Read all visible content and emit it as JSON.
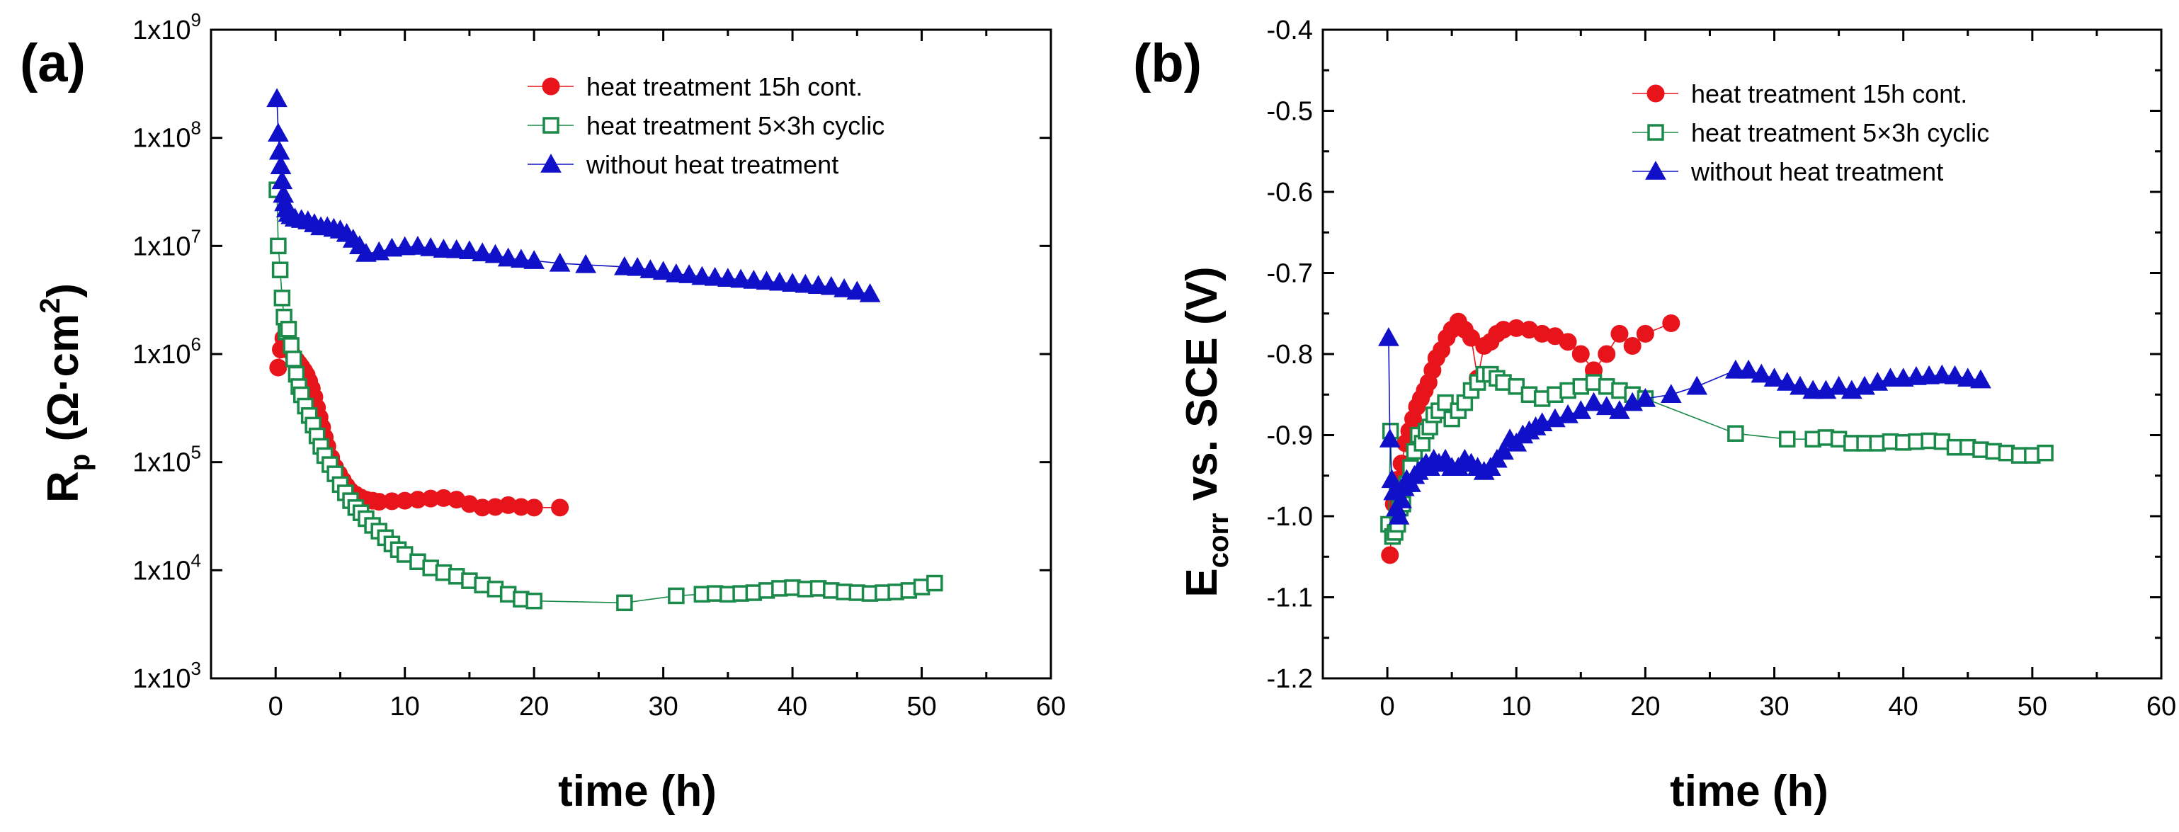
{
  "colors": {
    "red": "#E8141B",
    "green": "#1A8A4A",
    "blue": "#1010C8",
    "axis": "#000000"
  },
  "legend": {
    "red": "heat treatment 15h cont.",
    "green": "heat treatment 5×3h cyclic",
    "blue": "without heat treatment"
  },
  "chart_data": [
    {
      "type": "scatter",
      "panel_label": "(a)",
      "xlabel": "time (h)",
      "ylabel": "Rp (Ω·cm2)",
      "ylabel_parts": {
        "main": "R",
        "sub": "p",
        "unit_open": " (Ω·cm",
        "sup": "2",
        "unit_close": ")"
      },
      "xlim": [
        -5,
        60
      ],
      "ylim": [
        1000,
        1000000000
      ],
      "yscale": "log",
      "x_ticks": [
        0,
        10,
        20,
        30,
        40,
        50,
        60
      ],
      "x_tick_labels": [
        "0",
        "10",
        "20",
        "30",
        "40",
        "50",
        "60"
      ],
      "y_ticks": [
        1000,
        10000,
        100000,
        1000000,
        10000000,
        100000000,
        1000000000
      ],
      "y_tick_labels": [
        {
          "base": "1x10",
          "exp": "3"
        },
        {
          "base": "1x10",
          "exp": "4"
        },
        {
          "base": "1x10",
          "exp": "5"
        },
        {
          "base": "1x10",
          "exp": "6"
        },
        {
          "base": "1x10",
          "exp": "7"
        },
        {
          "base": "1x10",
          "exp": "8"
        },
        {
          "base": "1x10",
          "exp": "9"
        }
      ],
      "legend_position": "top-right",
      "series": [
        {
          "name": "heat treatment 15h cont.",
          "color_key": "red",
          "marker": "circle",
          "filled": true,
          "x": [
            0.2,
            0.4,
            0.6,
            0.8,
            1.0,
            1.2,
            1.4,
            1.6,
            1.8,
            2.0,
            2.2,
            2.4,
            2.6,
            2.8,
            3.0,
            3.2,
            3.4,
            3.6,
            3.8,
            4.0,
            4.3,
            4.6,
            4.9,
            5.2,
            5.5,
            5.8,
            6.2,
            6.6,
            7.0,
            7.5,
            8.0,
            9.0,
            10.0,
            11.0,
            12.0,
            13.0,
            14.0,
            15.0,
            16.0,
            17.0,
            18.0,
            19.0,
            20.0,
            22.0
          ],
          "y": [
            750000,
            1100000,
            1400000,
            1300000,
            1150000,
            1050000,
            950000,
            880000,
            820000,
            760000,
            700000,
            640000,
            560000,
            480000,
            400000,
            320000,
            260000,
            210000,
            170000,
            140000,
            110000,
            90000,
            78000,
            68000,
            60000,
            54000,
            50000,
            47000,
            45000,
            44000,
            43000,
            43500,
            44000,
            45000,
            46000,
            46500,
            45000,
            41000,
            38000,
            38500,
            40000,
            38500,
            38000,
            38000
          ]
        },
        {
          "name": "heat treatment 5×3h cyclic",
          "color_key": "green",
          "marker": "square",
          "filled": false,
          "x": [
            0.1,
            0.2,
            0.35,
            0.5,
            0.65,
            0.8,
            1.0,
            1.2,
            1.4,
            1.6,
            1.8,
            2.0,
            2.3,
            2.6,
            2.9,
            3.2,
            3.5,
            3.8,
            4.2,
            4.6,
            5.0,
            5.4,
            5.8,
            6.2,
            6.6,
            7.0,
            7.5,
            8.0,
            8.5,
            9.0,
            9.5,
            10.0,
            11.0,
            12.0,
            13.0,
            14.0,
            15.0,
            16.0,
            17.0,
            18.0,
            19.0,
            20.0,
            27.0,
            31.0,
            33.0,
            34.0,
            35.0,
            36.0,
            37.0,
            38.0,
            39.0,
            40.0,
            41.0,
            42.0,
            43.0,
            44.0,
            45.0,
            46.0,
            47.0,
            48.0,
            49.0,
            50.0,
            51.0
          ],
          "y": [
            33000000,
            10000000,
            6000000,
            3300000,
            2200000,
            1600000,
            1700000,
            1200000,
            900000,
            650000,
            500000,
            420000,
            330000,
            270000,
            220000,
            175000,
            140000,
            115000,
            95000,
            78000,
            62000,
            52000,
            44000,
            38000,
            34000,
            30000,
            26000,
            23000,
            20000,
            17500,
            15500,
            14000,
            12000,
            10500,
            9500,
            8800,
            8000,
            7300,
            6700,
            6000,
            5400,
            5200,
            5000,
            5800,
            6000,
            6100,
            6000,
            6100,
            6200,
            6500,
            6800,
            6900,
            6700,
            6800,
            6500,
            6300,
            6200,
            6100,
            6200,
            6300,
            6500,
            7000,
            7600
          ]
        },
        {
          "name": "without heat treatment",
          "color_key": "blue",
          "marker": "triangle",
          "filled": true,
          "x": [
            0.1,
            0.2,
            0.3,
            0.4,
            0.5,
            0.6,
            0.7,
            0.85,
            1.0,
            1.2,
            1.5,
            2.0,
            2.5,
            3.0,
            3.5,
            4.0,
            4.5,
            5.0,
            5.5,
            6.0,
            6.5,
            7.0,
            8.0,
            9.0,
            10.0,
            11.0,
            12.0,
            13.0,
            14.0,
            15.0,
            16.0,
            17.0,
            18.0,
            19.0,
            20.0,
            22.0,
            24.0,
            27.0,
            28.0,
            29.0,
            30.0,
            31.0,
            32.0,
            33.0,
            34.0,
            35.0,
            36.0,
            37.0,
            38.0,
            39.0,
            40.0,
            41.0,
            42.0,
            43.0,
            44.0,
            45.0,
            46.0
          ],
          "y": [
            230000000,
            110000000,
            75000000,
            55000000,
            40000000,
            30000000,
            25000000,
            22000000,
            20000000,
            19000000,
            18000000,
            17500000,
            17000000,
            16000000,
            15000000,
            15000000,
            14500000,
            14000000,
            13000000,
            11500000,
            10000000,
            8500000,
            8800000,
            9500000,
            9800000,
            9900000,
            9600000,
            9300000,
            9200000,
            9000000,
            8600000,
            8300000,
            7700000,
            7500000,
            7300000,
            6900000,
            6700000,
            6400000,
            6300000,
            6000000,
            5800000,
            5500000,
            5400000,
            5200000,
            5100000,
            5000000,
            4900000,
            4800000,
            4700000,
            4600000,
            4500000,
            4400000,
            4300000,
            4200000,
            4000000,
            3800000,
            3600000
          ]
        }
      ]
    },
    {
      "type": "scatter",
      "panel_label": "(b)",
      "xlabel": "time (h)",
      "ylabel": "Ecorr vs. SCE (V)",
      "ylabel_parts": {
        "main": "E",
        "sub": "corr",
        "rest": " vs. SCE (V)"
      },
      "xlim": [
        -5,
        60
      ],
      "ylim": [
        -1.2,
        -0.4
      ],
      "yscale": "linear",
      "x_ticks": [
        0,
        10,
        20,
        30,
        40,
        50,
        60
      ],
      "x_tick_labels": [
        "0",
        "10",
        "20",
        "30",
        "40",
        "50",
        "60"
      ],
      "y_ticks": [
        -1.2,
        -1.1,
        -1.0,
        -0.9,
        -0.8,
        -0.7,
        -0.6,
        -0.5,
        -0.4
      ],
      "y_tick_labels": [
        "-1.2",
        "-1.1",
        "-1.0",
        "-0.9",
        "-0.8",
        "-0.7",
        "-0.6",
        "-0.5",
        "-0.4"
      ],
      "legend_position": "top-right",
      "series": [
        {
          "name": "heat treatment 15h cont.",
          "color_key": "red",
          "marker": "circle",
          "filled": true,
          "x": [
            0.2,
            0.5,
            0.8,
            1.1,
            1.4,
            1.7,
            2.0,
            2.3,
            2.6,
            2.9,
            3.2,
            3.5,
            3.8,
            4.2,
            4.6,
            5.0,
            5.5,
            6.0,
            6.5,
            7.0,
            7.5,
            8.0,
            8.5,
            9.0,
            10.0,
            11.0,
            12.0,
            13.0,
            14.0,
            15.0,
            16.0,
            17.0,
            18.0,
            19.0,
            20.0,
            22.0
          ],
          "y": [
            -1.048,
            -0.985,
            -0.955,
            -0.935,
            -0.91,
            -0.895,
            -0.88,
            -0.865,
            -0.855,
            -0.845,
            -0.835,
            -0.82,
            -0.805,
            -0.795,
            -0.78,
            -0.77,
            -0.76,
            -0.77,
            -0.78,
            -0.83,
            -0.79,
            -0.785,
            -0.775,
            -0.77,
            -0.768,
            -0.77,
            -0.775,
            -0.778,
            -0.785,
            -0.8,
            -0.82,
            -0.8,
            -0.775,
            -0.79,
            -0.775,
            -0.762
          ]
        },
        {
          "name": "heat treatment 5×3h cyclic",
          "color_key": "green",
          "marker": "square",
          "filled": false,
          "x": [
            0.1,
            0.25,
            0.4,
            0.6,
            0.8,
            1.0,
            1.2,
            1.5,
            1.8,
            2.1,
            2.4,
            2.7,
            3.0,
            3.3,
            3.6,
            4.0,
            4.5,
            5.0,
            5.5,
            6.0,
            6.5,
            7.0,
            7.5,
            8.0,
            8.5,
            9.0,
            10.0,
            11.0,
            12.0,
            13.0,
            14.0,
            15.0,
            16.0,
            17.0,
            18.0,
            19.0,
            20.0,
            27.0,
            31.0,
            33.0,
            34.0,
            35.0,
            36.0,
            37.0,
            38.0,
            39.0,
            40.0,
            41.0,
            42.0,
            43.0,
            44.0,
            45.0,
            46.0,
            47.0,
            48.0,
            49.0,
            50.0,
            51.0
          ],
          "y": [
            -1.01,
            -0.895,
            -1.025,
            -1.02,
            -1.01,
            -0.99,
            -0.985,
            -0.96,
            -0.94,
            -0.92,
            -0.9,
            -0.91,
            -0.895,
            -0.89,
            -0.875,
            -0.87,
            -0.86,
            -0.88,
            -0.87,
            -0.86,
            -0.845,
            -0.835,
            -0.825,
            -0.825,
            -0.83,
            -0.835,
            -0.84,
            -0.85,
            -0.855,
            -0.85,
            -0.845,
            -0.84,
            -0.835,
            -0.84,
            -0.845,
            -0.85,
            -0.855,
            -0.898,
            -0.905,
            -0.905,
            -0.903,
            -0.905,
            -0.91,
            -0.91,
            -0.91,
            -0.908,
            -0.909,
            -0.908,
            -0.907,
            -0.908,
            -0.915,
            -0.915,
            -0.918,
            -0.92,
            -0.922,
            -0.925,
            -0.925,
            -0.922
          ]
        },
        {
          "name": "without heat treatment",
          "color_key": "blue",
          "marker": "triangle",
          "filled": true,
          "x": [
            0.1,
            0.2,
            0.35,
            0.5,
            0.7,
            0.9,
            1.1,
            1.3,
            1.5,
            1.8,
            2.1,
            2.4,
            2.7,
            3.0,
            3.3,
            3.6,
            4.0,
            4.5,
            5.0,
            5.5,
            6.0,
            6.5,
            7.0,
            7.5,
            8.0,
            8.5,
            9.0,
            9.5,
            10.0,
            10.5,
            11.0,
            11.5,
            12.0,
            13.0,
            14.0,
            15.0,
            16.0,
            17.0,
            18.0,
            19.0,
            20.0,
            22.0,
            24.0,
            27.0,
            28.0,
            29.0,
            30.0,
            31.0,
            32.0,
            33.0,
            34.0,
            35.0,
            36.0,
            37.0,
            38.0,
            39.0,
            40.0,
            41.0,
            42.0,
            43.0,
            44.0,
            45.0,
            46.0
          ],
          "y": [
            -0.78,
            -0.905,
            -0.955,
            -0.97,
            -0.99,
            -1.0,
            -0.98,
            -0.965,
            -0.955,
            -0.96,
            -0.95,
            -0.945,
            -0.94,
            -0.935,
            -0.94,
            -0.93,
            -0.935,
            -0.93,
            -0.94,
            -0.94,
            -0.93,
            -0.935,
            -0.94,
            -0.945,
            -0.94,
            -0.93,
            -0.92,
            -0.905,
            -0.91,
            -0.9,
            -0.895,
            -0.89,
            -0.885,
            -0.88,
            -0.875,
            -0.87,
            -0.86,
            -0.865,
            -0.87,
            -0.86,
            -0.855,
            -0.85,
            -0.84,
            -0.82,
            -0.82,
            -0.825,
            -0.83,
            -0.835,
            -0.84,
            -0.845,
            -0.845,
            -0.84,
            -0.845,
            -0.84,
            -0.835,
            -0.83,
            -0.83,
            -0.828,
            -0.827,
            -0.826,
            -0.827,
            -0.83,
            -0.832
          ]
        }
      ]
    }
  ]
}
